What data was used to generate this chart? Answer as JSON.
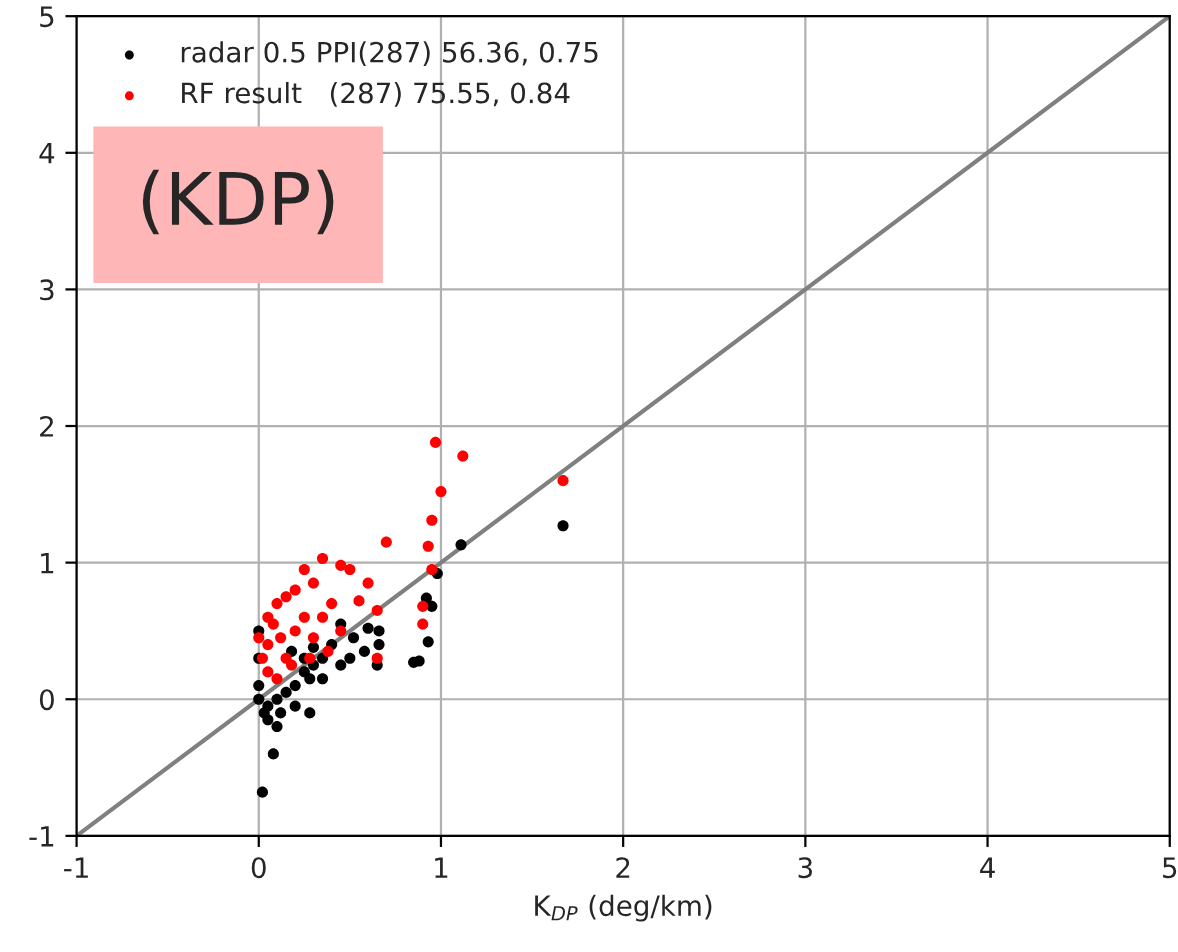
{
  "chart_data": {
    "type": "scatter",
    "xlabel": "K$_{DP}$ (deg/km)",
    "xlim": [
      -1,
      5
    ],
    "ylim": [
      -1,
      5
    ],
    "xticks": [
      -1,
      0,
      1,
      2,
      3,
      4,
      5
    ],
    "yticks": [
      -1,
      0,
      1,
      2,
      3,
      4,
      5
    ],
    "grid": true,
    "legend": "top left",
    "marker": "circle",
    "annotations": [
      "(KDP)"
    ],
    "series": [
      {
        "type": "line",
        "marker": "none",
        "color": "#808080",
        "x": [
          -1,
          5
        ],
        "values": [
          -1,
          5
        ]
      },
      {
        "name": "radar 0.5 PPI(287) 56.36, 0.75",
        "color": "#000000",
        "x": [
          1.67,
          1.11,
          0.98,
          0.95,
          0.92,
          0.93,
          0.88,
          0.85,
          0.65,
          0.66,
          0.66,
          0.6,
          0.58,
          0.52,
          0.45,
          0.4,
          0.35,
          0.3,
          0.28,
          0.25,
          0.2,
          0.15,
          0.1,
          0.05,
          0.05,
          0.1,
          0.08,
          0.02,
          0.0,
          0.0,
          0.0,
          0.03,
          0.12,
          0.2,
          0.25,
          0.35,
          0.45,
          0.3,
          0.5,
          0.18,
          0.28,
          0.0
        ],
        "values": [
          1.27,
          1.13,
          0.92,
          0.68,
          0.74,
          0.42,
          0.28,
          0.27,
          0.25,
          0.4,
          0.5,
          0.52,
          0.35,
          0.45,
          0.55,
          0.4,
          0.3,
          0.25,
          0.15,
          0.2,
          0.1,
          0.05,
          0.0,
          -0.05,
          -0.15,
          -0.2,
          -0.4,
          -0.68,
          0.5,
          0.3,
          0.1,
          -0.1,
          -0.1,
          -0.05,
          0.3,
          0.15,
          0.25,
          0.38,
          0.3,
          0.35,
          -0.1,
          0.0
        ]
      },
      {
        "name": "RF result   (287) 75.55, 0.84",
        "color": "#ff0000",
        "x": [
          1.67,
          1.12,
          0.97,
          1.0,
          0.95,
          0.93,
          0.95,
          0.9,
          0.9,
          0.65,
          0.65,
          0.7,
          0.6,
          0.55,
          0.5,
          0.45,
          0.35,
          0.3,
          0.25,
          0.2,
          0.15,
          0.1,
          0.08,
          0.05,
          0.02,
          0.05,
          0.1,
          0.15,
          0.2,
          0.25,
          0.3,
          0.4,
          0.45,
          0.38,
          0.0,
          0.12,
          0.18,
          0.28,
          0.05,
          0.35
        ],
        "values": [
          1.6,
          1.78,
          1.88,
          1.52,
          1.31,
          1.12,
          0.95,
          0.68,
          0.55,
          0.3,
          0.65,
          1.15,
          0.85,
          0.72,
          0.95,
          0.98,
          1.03,
          0.85,
          0.95,
          0.8,
          0.75,
          0.7,
          0.55,
          0.4,
          0.3,
          0.2,
          0.15,
          0.3,
          0.5,
          0.6,
          0.45,
          0.7,
          0.5,
          0.35,
          0.45,
          0.45,
          0.25,
          0.3,
          0.6,
          0.6
        ]
      }
    ]
  }
}
